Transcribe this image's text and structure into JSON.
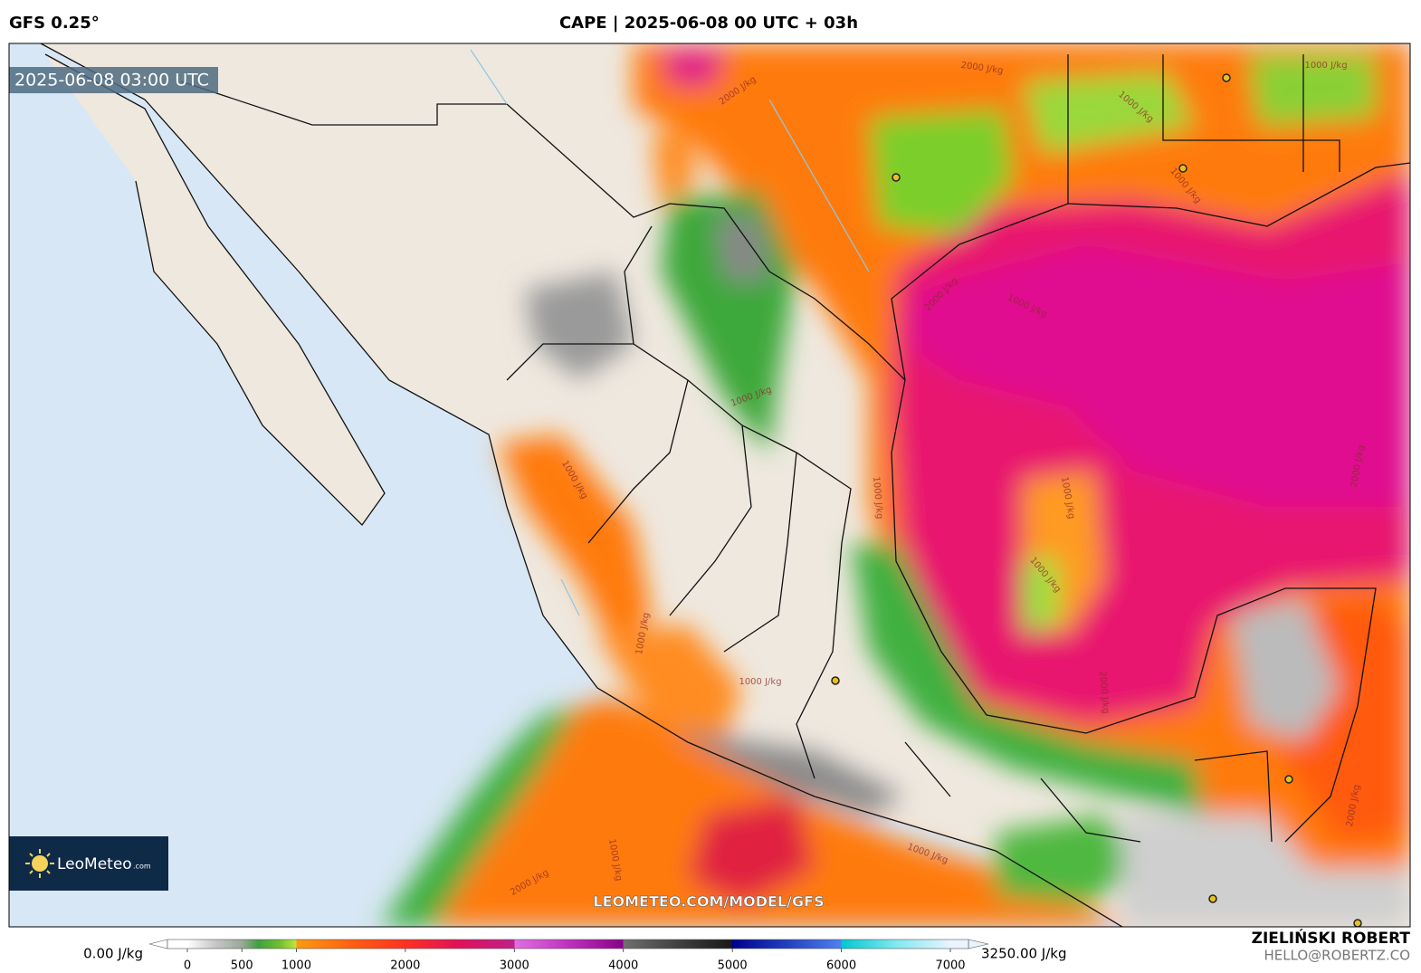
{
  "header": {
    "model": "GFS 0.25°",
    "title": "CAPE | 2025-06-08 00 UTC + 03h"
  },
  "map": {
    "valid_time": "2025-06-08 03:00 UTC",
    "watermark": "LEOMETEO.COM/MODEL/GFS",
    "contour_labels": [
      "2000 J/kg",
      "2000 J/kg",
      "1000 J/kg",
      "1000 J/kg",
      "1000 J/kg",
      "1000 J/kg",
      "1000 J/kg",
      "1000 J/kg",
      "1000 J/kg",
      "1000 J/kg",
      "1000 J/kg",
      "2000 J/kg",
      "1000 J/kg",
      "2000 J/kg",
      "2000 J/kg",
      "1000 J/kg",
      "1000 J/kg",
      "2000 J/kg",
      "1000 J/kg",
      "2000 J/kg"
    ]
  },
  "logo": {
    "name": "LeoMeteo",
    "domain": ".com"
  },
  "colorbar": {
    "min_label": "0.00 J/kg",
    "max_label": "3250.00 J/kg",
    "ticks": [
      0,
      500,
      1000,
      2000,
      3000,
      4000,
      5000,
      6000,
      7000
    ]
  },
  "credits": {
    "author": "ZIELIŃSKI ROBERT",
    "email": "HELLO@ROBERTZ.CO"
  }
}
